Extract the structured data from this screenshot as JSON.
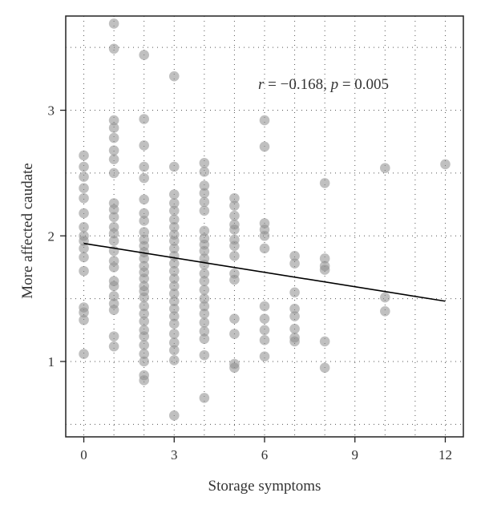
{
  "chart_data": {
    "type": "scatter",
    "title": "",
    "xlabel": "Storage symptoms",
    "ylabel": "More affected caudate",
    "xlim": [
      -0.6,
      12.6
    ],
    "ylim": [
      0.4,
      3.75
    ],
    "xticks": [
      0,
      3,
      6,
      9,
      12
    ],
    "yticks": [
      1,
      2,
      3
    ],
    "grid": "dotted",
    "annotation": {
      "r_symbol": "r",
      "r_text": " = −0.168, ",
      "p_symbol": "p",
      "p_text": " = 0.005"
    },
    "regression_line": {
      "x": [
        0,
        12
      ],
      "y": [
        1.94,
        1.48
      ]
    },
    "point_color": "#8c8c8c",
    "line_color": "#000000",
    "points": [
      {
        "x": 0,
        "y": 2.64
      },
      {
        "x": 0,
        "y": 2.55
      },
      {
        "x": 0,
        "y": 2.47
      },
      {
        "x": 0,
        "y": 2.38
      },
      {
        "x": 0,
        "y": 2.3
      },
      {
        "x": 0,
        "y": 2.18
      },
      {
        "x": 0,
        "y": 2.07
      },
      {
        "x": 0,
        "y": 2.0
      },
      {
        "x": 0,
        "y": 1.96
      },
      {
        "x": 0,
        "y": 1.9
      },
      {
        "x": 0,
        "y": 1.83
      },
      {
        "x": 0,
        "y": 1.72
      },
      {
        "x": 0,
        "y": 1.43
      },
      {
        "x": 0,
        "y": 1.39
      },
      {
        "x": 0,
        "y": 1.33
      },
      {
        "x": 0,
        "y": 1.06
      },
      {
        "x": 1,
        "y": 3.69
      },
      {
        "x": 1,
        "y": 3.49
      },
      {
        "x": 1,
        "y": 2.92
      },
      {
        "x": 1,
        "y": 2.86
      },
      {
        "x": 1,
        "y": 2.78
      },
      {
        "x": 1,
        "y": 2.68
      },
      {
        "x": 1,
        "y": 2.61
      },
      {
        "x": 1,
        "y": 2.5
      },
      {
        "x": 1,
        "y": 2.26
      },
      {
        "x": 1,
        "y": 2.21
      },
      {
        "x": 1,
        "y": 2.15
      },
      {
        "x": 1,
        "y": 2.07
      },
      {
        "x": 1,
        "y": 2.02
      },
      {
        "x": 1,
        "y": 1.96
      },
      {
        "x": 1,
        "y": 1.88
      },
      {
        "x": 1,
        "y": 1.8
      },
      {
        "x": 1,
        "y": 1.75
      },
      {
        "x": 1,
        "y": 1.64
      },
      {
        "x": 1,
        "y": 1.6
      },
      {
        "x": 1,
        "y": 1.52
      },
      {
        "x": 1,
        "y": 1.46
      },
      {
        "x": 1,
        "y": 1.41
      },
      {
        "x": 1,
        "y": 1.2
      },
      {
        "x": 1,
        "y": 1.12
      },
      {
        "x": 2,
        "y": 3.44
      },
      {
        "x": 2,
        "y": 2.93
      },
      {
        "x": 2,
        "y": 2.72
      },
      {
        "x": 2,
        "y": 2.55
      },
      {
        "x": 2,
        "y": 2.46
      },
      {
        "x": 2,
        "y": 2.29
      },
      {
        "x": 2,
        "y": 2.18
      },
      {
        "x": 2,
        "y": 2.12
      },
      {
        "x": 2,
        "y": 2.03
      },
      {
        "x": 2,
        "y": 1.97
      },
      {
        "x": 2,
        "y": 1.92
      },
      {
        "x": 2,
        "y": 1.87
      },
      {
        "x": 2,
        "y": 1.82
      },
      {
        "x": 2,
        "y": 1.76
      },
      {
        "x": 2,
        "y": 1.71
      },
      {
        "x": 2,
        "y": 1.66
      },
      {
        "x": 2,
        "y": 1.6
      },
      {
        "x": 2,
        "y": 1.56
      },
      {
        "x": 2,
        "y": 1.51
      },
      {
        "x": 2,
        "y": 1.44
      },
      {
        "x": 2,
        "y": 1.38
      },
      {
        "x": 2,
        "y": 1.32
      },
      {
        "x": 2,
        "y": 1.25
      },
      {
        "x": 2,
        "y": 1.2
      },
      {
        "x": 2,
        "y": 1.13
      },
      {
        "x": 2,
        "y": 1.06
      },
      {
        "x": 2,
        "y": 1.0
      },
      {
        "x": 2,
        "y": 0.89
      },
      {
        "x": 2,
        "y": 0.85
      },
      {
        "x": 3,
        "y": 3.27
      },
      {
        "x": 3,
        "y": 2.55
      },
      {
        "x": 3,
        "y": 2.33
      },
      {
        "x": 3,
        "y": 2.26
      },
      {
        "x": 3,
        "y": 2.2
      },
      {
        "x": 3,
        "y": 2.13
      },
      {
        "x": 3,
        "y": 2.07
      },
      {
        "x": 3,
        "y": 2.01
      },
      {
        "x": 3,
        "y": 1.96
      },
      {
        "x": 3,
        "y": 1.9
      },
      {
        "x": 3,
        "y": 1.84
      },
      {
        "x": 3,
        "y": 1.78
      },
      {
        "x": 3,
        "y": 1.72
      },
      {
        "x": 3,
        "y": 1.66
      },
      {
        "x": 3,
        "y": 1.6
      },
      {
        "x": 3,
        "y": 1.54
      },
      {
        "x": 3,
        "y": 1.48
      },
      {
        "x": 3,
        "y": 1.42
      },
      {
        "x": 3,
        "y": 1.36
      },
      {
        "x": 3,
        "y": 1.3
      },
      {
        "x": 3,
        "y": 1.22
      },
      {
        "x": 3,
        "y": 1.15
      },
      {
        "x": 3,
        "y": 1.09
      },
      {
        "x": 3,
        "y": 1.01
      },
      {
        "x": 3,
        "y": 0.57
      },
      {
        "x": 4,
        "y": 2.58
      },
      {
        "x": 4,
        "y": 2.51
      },
      {
        "x": 4,
        "y": 2.4
      },
      {
        "x": 4,
        "y": 2.34
      },
      {
        "x": 4,
        "y": 2.27
      },
      {
        "x": 4,
        "y": 2.2
      },
      {
        "x": 4,
        "y": 2.04
      },
      {
        "x": 4,
        "y": 1.98
      },
      {
        "x": 4,
        "y": 1.93
      },
      {
        "x": 4,
        "y": 1.88
      },
      {
        "x": 4,
        "y": 1.82
      },
      {
        "x": 4,
        "y": 1.77
      },
      {
        "x": 4,
        "y": 1.7
      },
      {
        "x": 4,
        "y": 1.64
      },
      {
        "x": 4,
        "y": 1.57
      },
      {
        "x": 4,
        "y": 1.5
      },
      {
        "x": 4,
        "y": 1.44
      },
      {
        "x": 4,
        "y": 1.38
      },
      {
        "x": 4,
        "y": 1.31
      },
      {
        "x": 4,
        "y": 1.24
      },
      {
        "x": 4,
        "y": 1.18
      },
      {
        "x": 4,
        "y": 1.05
      },
      {
        "x": 4,
        "y": 0.71
      },
      {
        "x": 5,
        "y": 2.3
      },
      {
        "x": 5,
        "y": 2.24
      },
      {
        "x": 5,
        "y": 2.16
      },
      {
        "x": 5,
        "y": 2.09
      },
      {
        "x": 5,
        "y": 2.05
      },
      {
        "x": 5,
        "y": 1.97
      },
      {
        "x": 5,
        "y": 1.92
      },
      {
        "x": 5,
        "y": 1.84
      },
      {
        "x": 5,
        "y": 1.7
      },
      {
        "x": 5,
        "y": 1.65
      },
      {
        "x": 5,
        "y": 1.34
      },
      {
        "x": 5,
        "y": 1.22
      },
      {
        "x": 5,
        "y": 0.98
      },
      {
        "x": 5,
        "y": 0.95
      },
      {
        "x": 6,
        "y": 2.92
      },
      {
        "x": 6,
        "y": 2.71
      },
      {
        "x": 6,
        "y": 2.1
      },
      {
        "x": 6,
        "y": 2.05
      },
      {
        "x": 6,
        "y": 2.0
      },
      {
        "x": 6,
        "y": 1.9
      },
      {
        "x": 6,
        "y": 1.44
      },
      {
        "x": 6,
        "y": 1.34
      },
      {
        "x": 6,
        "y": 1.25
      },
      {
        "x": 6,
        "y": 1.17
      },
      {
        "x": 6,
        "y": 1.04
      },
      {
        "x": 7,
        "y": 1.84
      },
      {
        "x": 7,
        "y": 1.78
      },
      {
        "x": 7,
        "y": 1.55
      },
      {
        "x": 7,
        "y": 1.42
      },
      {
        "x": 7,
        "y": 1.36
      },
      {
        "x": 7,
        "y": 1.26
      },
      {
        "x": 7,
        "y": 1.19
      },
      {
        "x": 7,
        "y": 1.16
      },
      {
        "x": 8,
        "y": 2.42
      },
      {
        "x": 8,
        "y": 1.82
      },
      {
        "x": 8,
        "y": 1.76
      },
      {
        "x": 8,
        "y": 1.73
      },
      {
        "x": 8,
        "y": 1.16
      },
      {
        "x": 8,
        "y": 0.95
      },
      {
        "x": 10,
        "y": 2.54
      },
      {
        "x": 10,
        "y": 1.51
      },
      {
        "x": 10,
        "y": 1.4
      },
      {
        "x": 12,
        "y": 2.57
      }
    ]
  }
}
